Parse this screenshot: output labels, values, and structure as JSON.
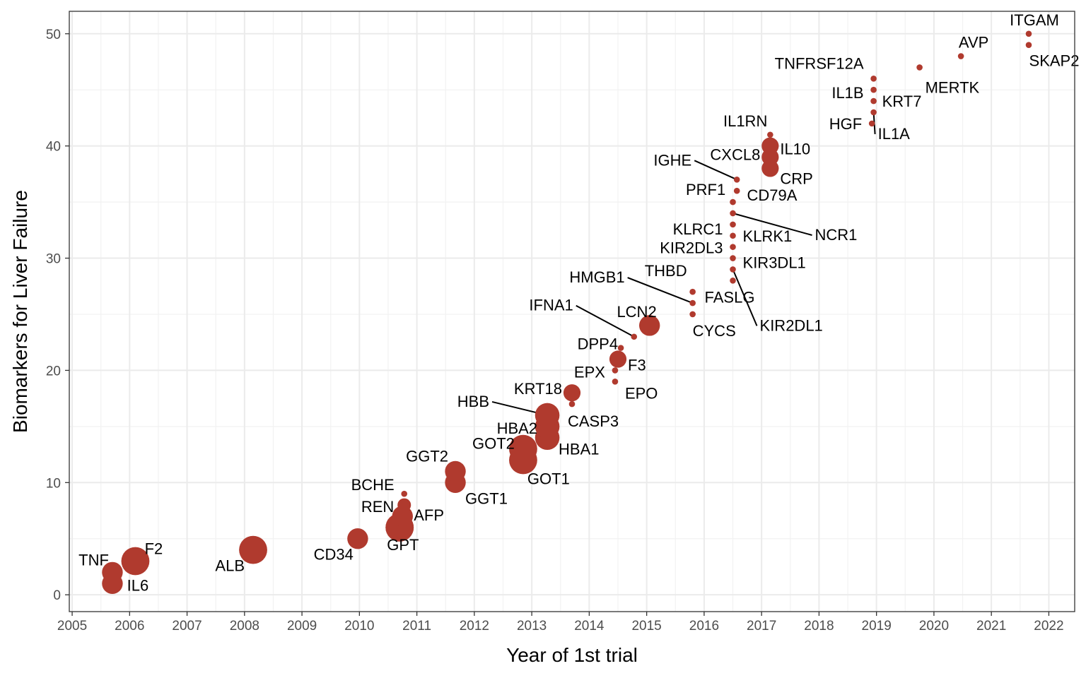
{
  "chart_data": {
    "type": "scatter",
    "xlabel": "Year of 1st trial",
    "ylabel": "Biomarkers for Liver Failure",
    "xlim": [
      2004.95,
      2022.45
    ],
    "ylim": [
      -1.5,
      52
    ],
    "grid": true,
    "point_color": "#B03A2E",
    "x_ticks": [
      2005,
      2006,
      2007,
      2008,
      2009,
      2010,
      2011,
      2012,
      2013,
      2014,
      2015,
      2016,
      2017,
      2018,
      2019,
      2020,
      2021,
      2022
    ],
    "y_ticks": [
      0,
      10,
      20,
      30,
      40,
      50
    ],
    "points": [
      {
        "label": "IL6",
        "x": 2005.7,
        "y": 1,
        "size": 3
      },
      {
        "label": "TNF",
        "x": 2005.7,
        "y": 2,
        "size": 3
      },
      {
        "label": "F2",
        "x": 2006.1,
        "y": 3,
        "size": 4
      },
      {
        "label": "ALB",
        "x": 2008.15,
        "y": 4,
        "size": 4
      },
      {
        "label": "CD34",
        "x": 2009.97,
        "y": 5,
        "size": 3
      },
      {
        "label": "GPT",
        "x": 2010.7,
        "y": 6,
        "size": 4
      },
      {
        "label": "AFP",
        "x": 2010.7,
        "y": 6,
        "size": 4
      },
      {
        "label": "REN",
        "x": 2010.75,
        "y": 7,
        "size": 3
      },
      {
        "label": "",
        "x": 2010.78,
        "y": 8,
        "size": 2
      },
      {
        "label": "BCHE",
        "x": 2010.78,
        "y": 9,
        "size": 1
      },
      {
        "label": "GGT1",
        "x": 2011.67,
        "y": 10,
        "size": 3
      },
      {
        "label": "GGT2",
        "x": 2011.67,
        "y": 11,
        "size": 3
      },
      {
        "label": "GOT1",
        "x": 2012.85,
        "y": 12,
        "size": 4
      },
      {
        "label": "GOT2",
        "x": 2012.85,
        "y": 13,
        "size": 4
      },
      {
        "label": "HBA1",
        "x": 2013.27,
        "y": 14,
        "size": 3.5
      },
      {
        "label": "HBA2",
        "x": 2013.27,
        "y": 15,
        "size": 3.5
      },
      {
        "label": "HBB",
        "x": 2013.27,
        "y": 16,
        "size": 3.5
      },
      {
        "label": "CASP3",
        "x": 2013.7,
        "y": 17,
        "size": 1
      },
      {
        "label": "KRT18",
        "x": 2013.7,
        "y": 18,
        "size": 2.5
      },
      {
        "label": "EPO",
        "x": 2014.45,
        "y": 19,
        "size": 1
      },
      {
        "label": "EPX",
        "x": 2014.45,
        "y": 20,
        "size": 1
      },
      {
        "label": "F3",
        "x": 2014.5,
        "y": 21,
        "size": 2.5
      },
      {
        "label": "DPP4",
        "x": 2014.55,
        "y": 22,
        "size": 1
      },
      {
        "label": "IFNA1",
        "x": 2014.78,
        "y": 23,
        "size": 1
      },
      {
        "label": "LCN2",
        "x": 2015.05,
        "y": 24,
        "size": 3
      },
      {
        "label": "CYCS",
        "x": 2015.8,
        "y": 25,
        "size": 1
      },
      {
        "label": "HMGB1",
        "x": 2015.8,
        "y": 26,
        "size": 1
      },
      {
        "label": "THBD",
        "x": 2015.8,
        "y": 27,
        "size": 1
      },
      {
        "label": "FASLG",
        "x": 2016.5,
        "y": 28,
        "size": 1
      },
      {
        "label": "KIR2DL1",
        "x": 2016.5,
        "y": 29,
        "size": 1
      },
      {
        "label": "KIR3DL1",
        "x": 2016.5,
        "y": 30,
        "size": 1
      },
      {
        "label": "KIR2DL3",
        "x": 2016.5,
        "y": 31,
        "size": 1
      },
      {
        "label": "KLRK1",
        "x": 2016.5,
        "y": 32,
        "size": 1
      },
      {
        "label": "KLRC1",
        "x": 2016.5,
        "y": 33,
        "size": 1
      },
      {
        "label": "NCR1",
        "x": 2016.5,
        "y": 34,
        "size": 1
      },
      {
        "label": "CD79A",
        "x": 2016.5,
        "y": 35,
        "size": 1
      },
      {
        "label": "PRF1",
        "x": 2016.57,
        "y": 36,
        "size": 1
      },
      {
        "label": "IGHE",
        "x": 2016.57,
        "y": 37,
        "size": 1
      },
      {
        "label": "CRP",
        "x": 2017.15,
        "y": 38,
        "size": 2.5
      },
      {
        "label": "CXCL8",
        "x": 2017.15,
        "y": 39,
        "size": 2.5
      },
      {
        "label": "IL10",
        "x": 2017.15,
        "y": 40,
        "size": 2.5
      },
      {
        "label": "IL1RN",
        "x": 2017.15,
        "y": 41,
        "size": 1
      },
      {
        "label": "HGF",
        "x": 2018.92,
        "y": 42,
        "size": 1
      },
      {
        "label": "IL1A",
        "x": 2018.95,
        "y": 43,
        "size": 1
      },
      {
        "label": "KRT7",
        "x": 2018.95,
        "y": 44,
        "size": 1
      },
      {
        "label": "IL1B",
        "x": 2018.95,
        "y": 45,
        "size": 1
      },
      {
        "label": "TNFRSF12A",
        "x": 2018.95,
        "y": 46,
        "size": 1
      },
      {
        "label": "MERTK",
        "x": 2019.75,
        "y": 47,
        "size": 1
      },
      {
        "label": "AVP",
        "x": 2020.47,
        "y": 48,
        "size": 1
      },
      {
        "label": "SKAP2",
        "x": 2021.65,
        "y": 49,
        "size": 1
      },
      {
        "label": "ITGAM",
        "x": 2021.65,
        "y": 50,
        "size": 1
      }
    ]
  }
}
